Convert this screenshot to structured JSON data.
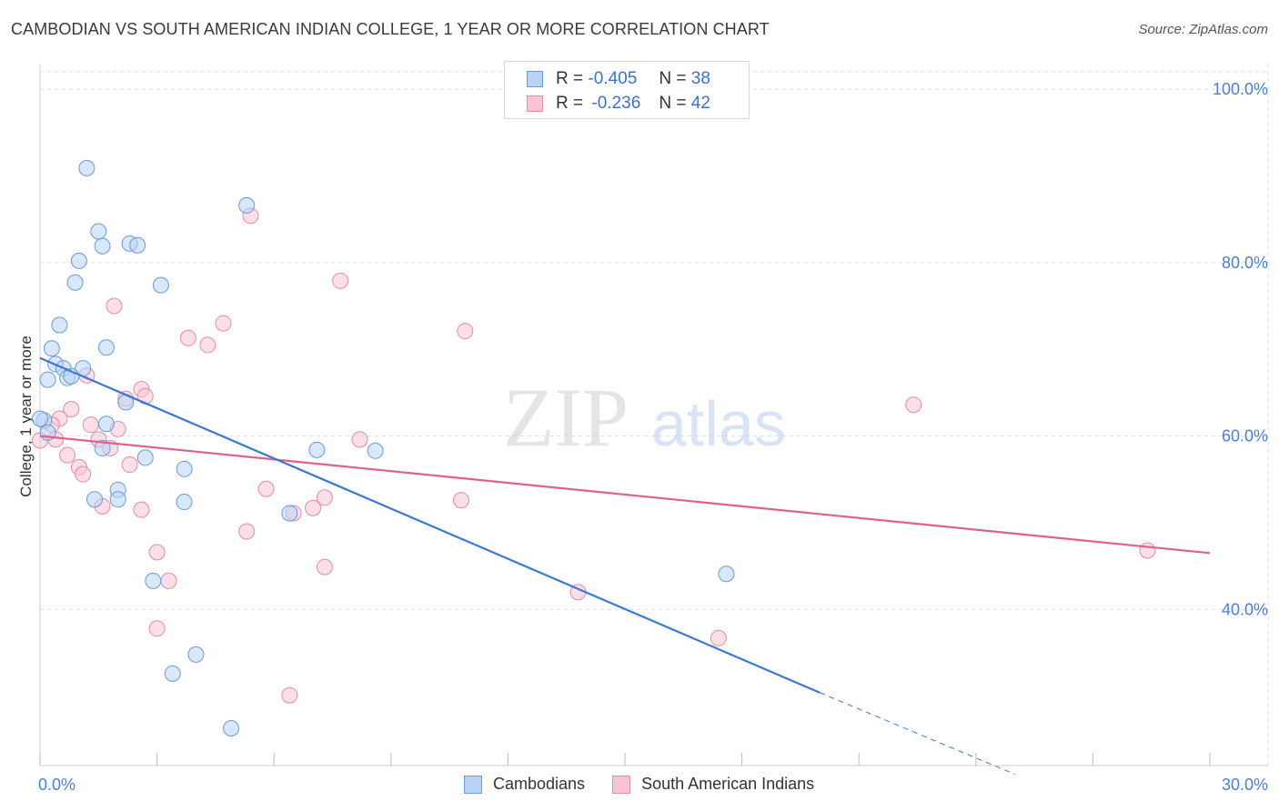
{
  "title": "CAMBODIAN VS SOUTH AMERICAN INDIAN COLLEGE, 1 YEAR OR MORE CORRELATION CHART",
  "source": "Source: ZipAtlas.com",
  "watermark": {
    "zip": "ZIP",
    "atlas": "atlas"
  },
  "legend": {
    "r_label": "R =",
    "n_label": "N =",
    "series": [
      {
        "r": "-0.405",
        "n": "38"
      },
      {
        "r": "-0.236",
        "n": "42"
      }
    ]
  },
  "bottom_legend": [
    "Cambodians",
    "South American Indians"
  ],
  "colors": {
    "cambodian_fill": "#b8d3f5",
    "cambodian_stroke": "#6a9ad8",
    "cambodian_line": "#3a78d4",
    "sai_fill": "#f9c4d4",
    "sai_stroke": "#e58aa8",
    "sai_line": "#e0608c",
    "grid": "#dddddd",
    "axis_label": "#4a7fd0"
  },
  "chart_data": {
    "type": "scatter",
    "title": "CAMBODIAN VS SOUTH AMERICAN INDIAN COLLEGE, 1 YEAR OR MORE CORRELATION CHART",
    "xlabel": "",
    "ylabel": "College, 1 year or more",
    "xlim": [
      0,
      30
    ],
    "ylim": [
      22,
      102
    ],
    "x_tick_labels": [
      "0.0%",
      "30.0%"
    ],
    "y_ticks": [
      40,
      60,
      80,
      100
    ],
    "y_tick_labels": [
      "40.0%",
      "60.0%",
      "80.0%",
      "100.0%"
    ],
    "legend_position": "top-center",
    "series": [
      {
        "name": "Cambodians",
        "r": -0.405,
        "n": 38,
        "points": [
          [
            1.2,
            90.9
          ],
          [
            5.3,
            86.6
          ],
          [
            1.5,
            83.6
          ],
          [
            1.6,
            81.9
          ],
          [
            2.3,
            82.2
          ],
          [
            2.5,
            82.0
          ],
          [
            1.0,
            80.2
          ],
          [
            0.9,
            77.7
          ],
          [
            3.1,
            77.4
          ],
          [
            0.5,
            72.8
          ],
          [
            0.3,
            70.1
          ],
          [
            1.7,
            70.2
          ],
          [
            0.4,
            68.3
          ],
          [
            0.6,
            67.8
          ],
          [
            1.1,
            67.8
          ],
          [
            0.7,
            66.7
          ],
          [
            0.8,
            66.9
          ],
          [
            0.2,
            66.5
          ],
          [
            2.2,
            63.9
          ],
          [
            0.1,
            61.8
          ],
          [
            1.7,
            61.4
          ],
          [
            0.2,
            60.4
          ],
          [
            1.6,
            58.6
          ],
          [
            7.1,
            58.4
          ],
          [
            8.6,
            58.3
          ],
          [
            2.7,
            57.5
          ],
          [
            3.7,
            56.2
          ],
          [
            2.0,
            53.8
          ],
          [
            1.4,
            52.7
          ],
          [
            2.0,
            52.7
          ],
          [
            3.7,
            52.4
          ],
          [
            6.4,
            51.1
          ],
          [
            17.6,
            44.1
          ],
          [
            2.9,
            43.3
          ],
          [
            4.0,
            34.8
          ],
          [
            3.4,
            32.6
          ],
          [
            4.9,
            26.3
          ],
          [
            0.0,
            62.0
          ]
        ],
        "trend": {
          "x": [
            0,
            20
          ],
          "y": [
            69.0,
            30.4
          ]
        },
        "trend_dashed": {
          "x": [
            20,
            25
          ],
          "y": [
            30.4,
            21.0
          ]
        }
      },
      {
        "name": "South American Indians",
        "r": -0.236,
        "n": 42,
        "points": [
          [
            5.4,
            85.4
          ],
          [
            7.7,
            77.9
          ],
          [
            1.9,
            75.0
          ],
          [
            4.7,
            73.0
          ],
          [
            10.9,
            72.1
          ],
          [
            3.8,
            71.3
          ],
          [
            4.3,
            70.5
          ],
          [
            1.2,
            67.0
          ],
          [
            2.6,
            65.4
          ],
          [
            2.2,
            64.3
          ],
          [
            2.7,
            64.6
          ],
          [
            22.4,
            63.6
          ],
          [
            0.8,
            63.1
          ],
          [
            0.5,
            62.0
          ],
          [
            1.3,
            61.3
          ],
          [
            2.0,
            60.8
          ],
          [
            0.3,
            61.3
          ],
          [
            0.4,
            59.6
          ],
          [
            1.5,
            59.6
          ],
          [
            8.2,
            59.6
          ],
          [
            1.8,
            58.6
          ],
          [
            0.7,
            57.8
          ],
          [
            1.0,
            56.4
          ],
          [
            2.3,
            56.7
          ],
          [
            1.1,
            55.6
          ],
          [
            5.8,
            53.9
          ],
          [
            7.3,
            52.9
          ],
          [
            10.8,
            52.6
          ],
          [
            1.6,
            51.9
          ],
          [
            2.6,
            51.5
          ],
          [
            7.0,
            51.7
          ],
          [
            6.5,
            51.1
          ],
          [
            5.3,
            49.0
          ],
          [
            3.0,
            46.6
          ],
          [
            7.3,
            44.9
          ],
          [
            3.3,
            43.3
          ],
          [
            13.8,
            42.0
          ],
          [
            28.4,
            46.8
          ],
          [
            3.0,
            37.8
          ],
          [
            17.4,
            36.7
          ],
          [
            6.4,
            30.1
          ],
          [
            0.0,
            59.5
          ]
        ],
        "trend": {
          "x": [
            0,
            30
          ],
          "y": [
            60.0,
            46.5
          ]
        }
      }
    ]
  }
}
